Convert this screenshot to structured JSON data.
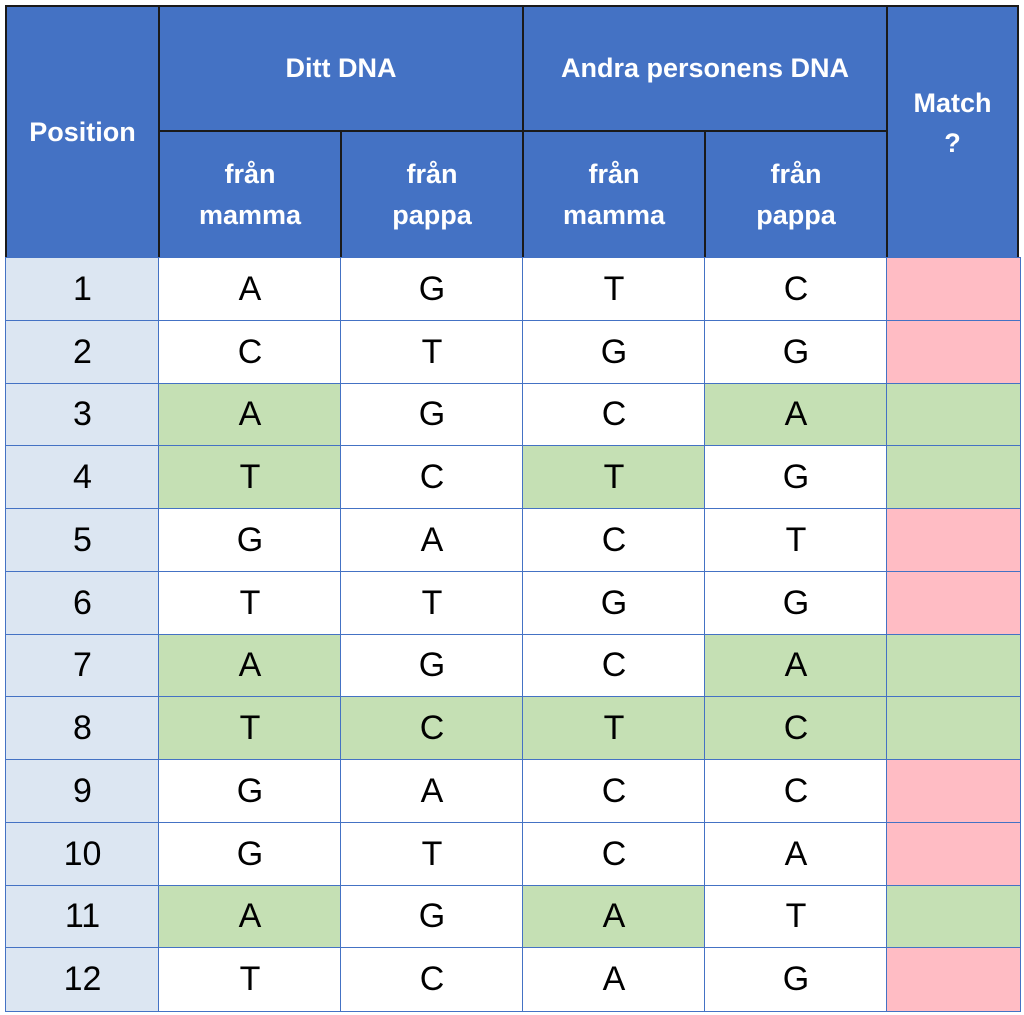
{
  "header": {
    "position": "Position",
    "group_1": "Ditt DNA",
    "group_2": "Andra personens DNA",
    "match": "Match ?",
    "sub": [
      "från mamma",
      "från pappa",
      "från mamma",
      "från pappa"
    ]
  },
  "rows": [
    {
      "position": 1,
      "cells": [
        "A",
        "G",
        "T",
        "C"
      ],
      "highlight": [
        false,
        false,
        false,
        false
      ],
      "match": false
    },
    {
      "position": 2,
      "cells": [
        "C",
        "T",
        "G",
        "G"
      ],
      "highlight": [
        false,
        false,
        false,
        false
      ],
      "match": false
    },
    {
      "position": 3,
      "cells": [
        "A",
        "G",
        "C",
        "A"
      ],
      "highlight": [
        true,
        false,
        false,
        true
      ],
      "match": true
    },
    {
      "position": 4,
      "cells": [
        "T",
        "C",
        "T",
        "G"
      ],
      "highlight": [
        true,
        false,
        true,
        false
      ],
      "match": true
    },
    {
      "position": 5,
      "cells": [
        "G",
        "A",
        "C",
        "T"
      ],
      "highlight": [
        false,
        false,
        false,
        false
      ],
      "match": false
    },
    {
      "position": 6,
      "cells": [
        "T",
        "T",
        "G",
        "G"
      ],
      "highlight": [
        false,
        false,
        false,
        false
      ],
      "match": false
    },
    {
      "position": 7,
      "cells": [
        "A",
        "G",
        "C",
        "A"
      ],
      "highlight": [
        true,
        false,
        false,
        true
      ],
      "match": true
    },
    {
      "position": 8,
      "cells": [
        "T",
        "C",
        "T",
        "C"
      ],
      "highlight": [
        true,
        true,
        true,
        true
      ],
      "match": true
    },
    {
      "position": 9,
      "cells": [
        "G",
        "A",
        "C",
        "C"
      ],
      "highlight": [
        false,
        false,
        false,
        false
      ],
      "match": false
    },
    {
      "position": 10,
      "cells": [
        "G",
        "T",
        "C",
        "A"
      ],
      "highlight": [
        false,
        false,
        false,
        false
      ],
      "match": false
    },
    {
      "position": 11,
      "cells": [
        "A",
        "G",
        "A",
        "T"
      ],
      "highlight": [
        true,
        false,
        true,
        false
      ],
      "match": true
    },
    {
      "position": 12,
      "cells": [
        "T",
        "C",
        "A",
        "G"
      ],
      "highlight": [
        false,
        false,
        false,
        false
      ],
      "match": false
    }
  ]
}
